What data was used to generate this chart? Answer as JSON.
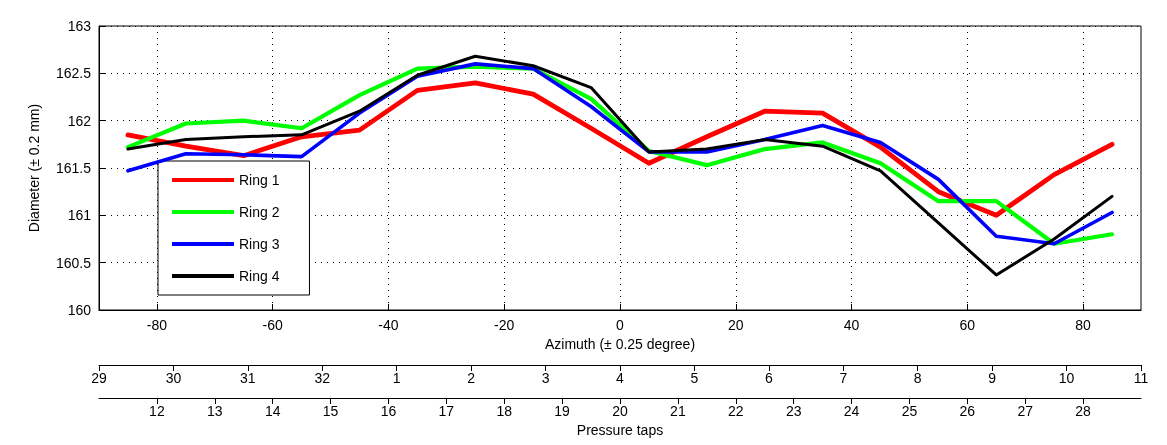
{
  "chart_data": {
    "type": "line",
    "xlabel": "Azimuth (± 0.25 degree)",
    "ylabel": "Diameter (± 0.2 mm)",
    "annotations": [
      "29",
      "30",
      "31",
      "32",
      "1",
      "2",
      "3",
      "4",
      "5",
      "6",
      "7",
      "8",
      "9",
      "10",
      "11"
    ],
    "x2label": "Pressure taps",
    "x2lim": [
      11,
      29
    ],
    "x2ticks": [
      12,
      13,
      14,
      15,
      16,
      17,
      18,
      19,
      20,
      21,
      22,
      23,
      24,
      25,
      26,
      27,
      28
    ],
    "x": [
      -85,
      -75,
      -65,
      -55,
      -45,
      -35,
      -25,
      -15,
      -5,
      5,
      15,
      25,
      35,
      45,
      55,
      65,
      75,
      85
    ],
    "xlim": [
      -90,
      90
    ],
    "xticks": [
      -80,
      -60,
      -40,
      -20,
      0,
      20,
      40,
      60,
      80
    ],
    "ylim": [
      160,
      163
    ],
    "yticks": [
      160,
      160.5,
      161,
      161.5,
      162,
      162.5,
      163
    ],
    "grid": true,
    "legend": "bottom left",
    "marker": "none",
    "line_style": "solid",
    "series": [
      {
        "name": "Ring 1",
        "color": "#ff0000",
        "values": [
          161.85,
          161.73,
          161.63,
          161.83,
          161.9,
          162.32,
          162.4,
          162.28,
          161.92,
          161.55,
          161.83,
          162.1,
          162.08,
          161.72,
          161.25,
          161.0,
          161.43,
          161.75
        ]
      },
      {
        "name": "Ring 2",
        "color": "#00ff00",
        "values": [
          161.72,
          161.97,
          162.0,
          161.92,
          162.27,
          162.55,
          162.57,
          162.55,
          162.23,
          161.68,
          161.53,
          161.7,
          161.77,
          161.55,
          161.15,
          161.15,
          160.7,
          160.8
        ]
      },
      {
        "name": "Ring 3",
        "color": "#0000ff",
        "values": [
          161.47,
          161.65,
          161.64,
          161.62,
          162.08,
          162.47,
          162.6,
          162.55,
          162.15,
          161.67,
          161.67,
          161.8,
          161.95,
          161.77,
          161.38,
          160.78,
          160.7,
          161.03
        ]
      },
      {
        "name": "Ring 4",
        "color": "#000000",
        "values": [
          161.7,
          161.8,
          161.83,
          161.85,
          162.1,
          162.48,
          162.68,
          162.58,
          162.35,
          161.67,
          161.7,
          161.8,
          161.73,
          161.47,
          160.92,
          160.37,
          160.75,
          161.2
        ]
      }
    ]
  }
}
